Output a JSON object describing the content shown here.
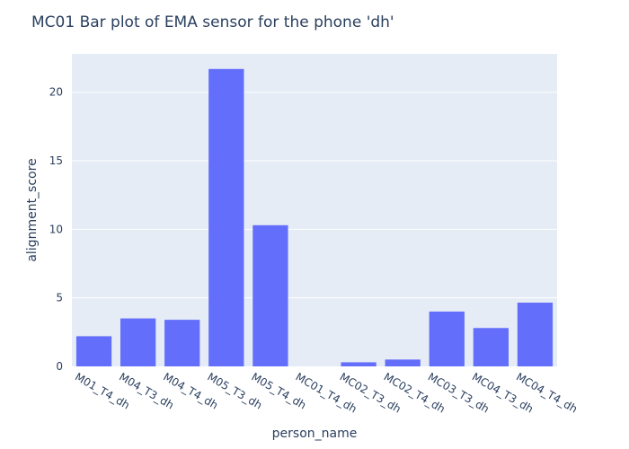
{
  "chart_data": {
    "type": "bar",
    "title": "MC01 Bar plot of EMA sensor for the phone 'dh'",
    "xlabel": "person_name",
    "ylabel": "alignment_score",
    "categories": [
      "M01_T4_dh",
      "M04_T3_dh",
      "M04_T4_dh",
      "M05_T3_dh",
      "M05_T4_dh",
      "MC01_T4_dh",
      "MC02_T3_dh",
      "MC02_T4_dh",
      "MC03_T3_dh",
      "MC04_T3_dh",
      "MC04_T4_dh"
    ],
    "values": [
      2.2,
      3.5,
      3.4,
      21.7,
      10.3,
      0.0,
      0.3,
      0.5,
      4.0,
      2.8,
      4.65
    ],
    "ylim": [
      0,
      22.8
    ],
    "yticks": [
      0,
      5,
      10,
      15,
      20
    ],
    "grid": true,
    "colors": {
      "bar": "#636efa",
      "plot_bg": "#e5ecf6",
      "grid": "#ffffff",
      "text": "#2a3f5f"
    }
  }
}
